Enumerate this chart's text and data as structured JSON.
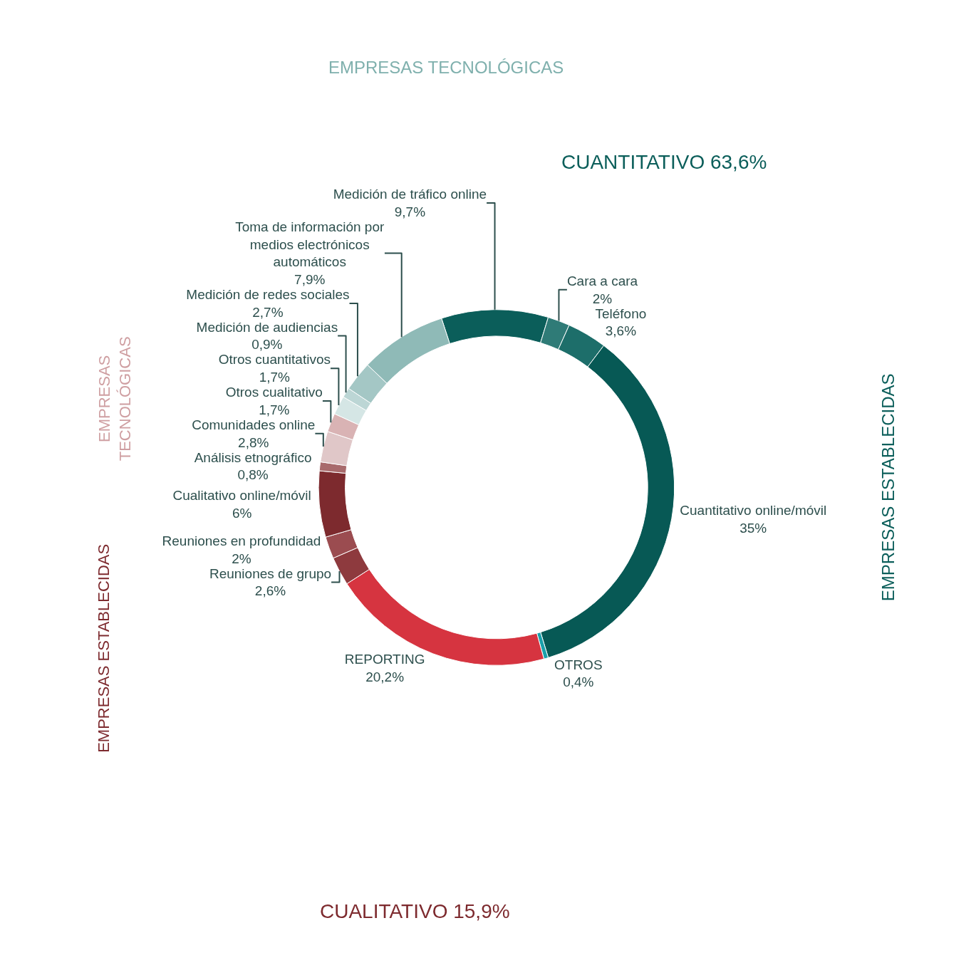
{
  "chart_data": {
    "type": "donut",
    "categories": [
      "Medición de tráfico online",
      "Cara a cara",
      "Teléfono",
      "Cuantitativo online/móvil",
      "OTROS",
      "REPORTING",
      "Reuniones de grupo",
      "Reuniones en profundidad",
      "Cualitativo online/móvil",
      "Análisis etnográfico",
      "Comunidades online",
      "Otros cualitativo",
      "Otros cuantitativos",
      "Medición de audiencias",
      "Medición de redes sociales",
      "Toma de información por medios electrónicos automáticos"
    ],
    "values": [
      9.7,
      2,
      3.6,
      35,
      0.4,
      20.2,
      2.6,
      2,
      6,
      0.8,
      2.8,
      1.7,
      1.7,
      0.9,
      2.7,
      7.9
    ],
    "value_labels": [
      "9,7%",
      "2%",
      "3,6%",
      "35%",
      "0,4%",
      "20,2%",
      "2,6%",
      "2%",
      "6%",
      "0,8%",
      "2,8%",
      "1,7%",
      "1,7%",
      "0,9%",
      "2,7%",
      "7,9%"
    ],
    "colors": [
      "#0b5e5a",
      "#2f7b77",
      "#1d6e6a",
      "#075955",
      "#1aa0aa",
      "#d63440",
      "#8e3a3e",
      "#9b4c50",
      "#7d2a2e",
      "#a86a6c",
      "#e0c7c8",
      "#d9b3b4",
      "#d5e6e5",
      "#bcd6d5",
      "#a4c7c5",
      "#8fbab7"
    ],
    "annotations": [
      "EMPRESAS TECNOLÓGICAS",
      "CUANTITATIVO 63,6%",
      "EMPRESAS ESTABLECIDAS",
      "EMPRESAS TECNOLÓGICAS",
      "EMPRESAS ESTABLECIDAS",
      "CUALITATIVO 15,9%"
    ],
    "legend": false
  }
}
